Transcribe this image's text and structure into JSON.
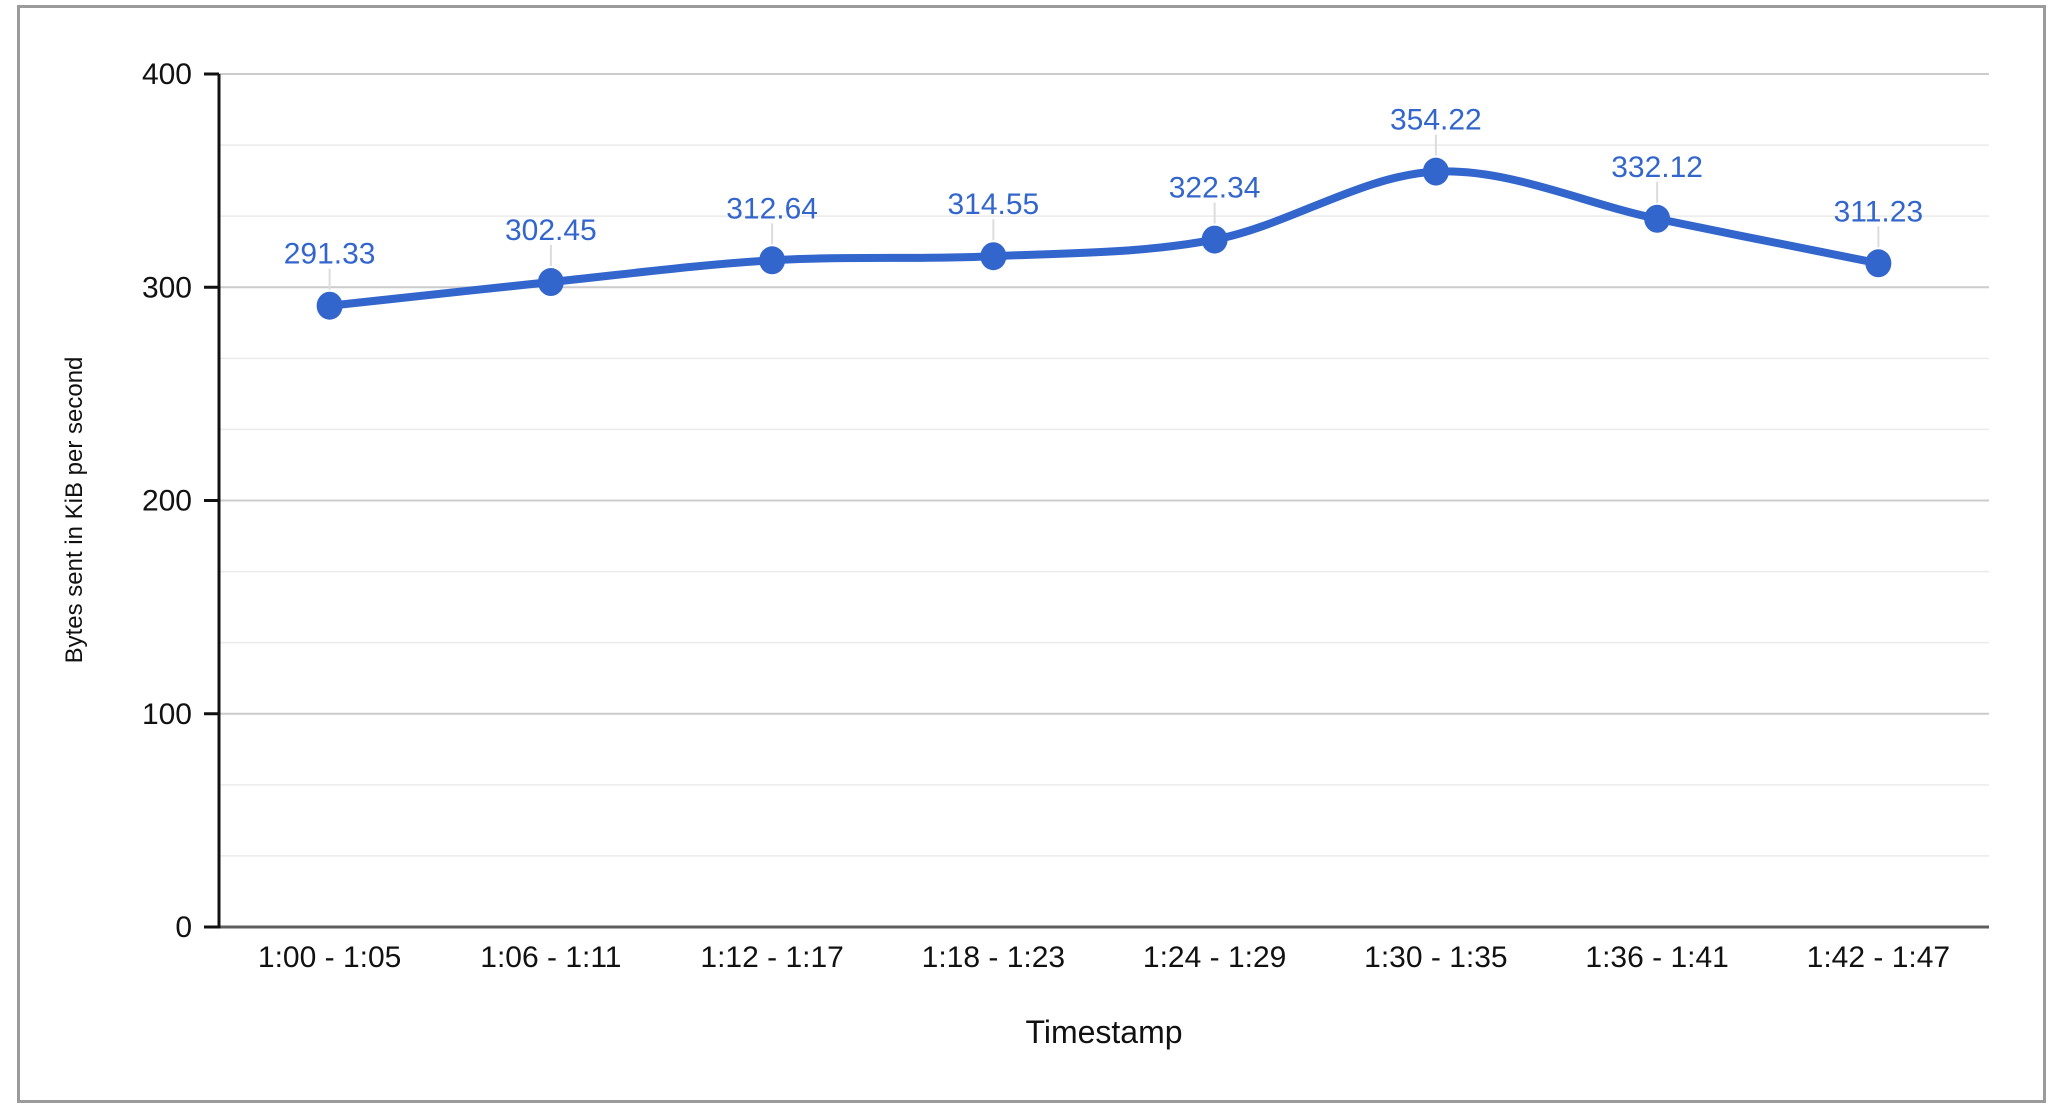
{
  "chart_data": {
    "type": "line",
    "title": "",
    "categories": [
      "1:00 - 1:05",
      "1:06 - 1:11",
      "1:12 - 1:17",
      "1:18 - 1:23",
      "1:24 - 1:29",
      "1:30 - 1:35",
      "1:36 - 1:41",
      "1:42 - 1:47"
    ],
    "values": [
      291.33,
      302.45,
      312.64,
      314.55,
      322.34,
      354.22,
      332.12,
      311.23
    ],
    "point_labels": [
      "291.33",
      "302.45",
      "312.64",
      "314.55",
      "322.34",
      "354.22",
      "332.12",
      "311.23"
    ],
    "xlabel": "Timestamp",
    "ylabel": "Bytes sent in KiB per second",
    "ylim": [
      0,
      400
    ],
    "yticks": [
      0,
      100,
      200,
      300,
      400
    ],
    "ytick_labels": [
      "0",
      "100",
      "200",
      "300",
      "400"
    ],
    "minor_grid_divisions": 3,
    "grid": true,
    "legend_position": "none",
    "smooth_curve": true,
    "colors": {
      "series": "#3366cc",
      "annotation_text": "#3366cc",
      "major_gridline": "#cccccc",
      "minor_gridline": "#ebebeb",
      "baseline": "#5f5f5f",
      "axis_line": "#111111",
      "tick_text": "#111111",
      "annotation_stem": "#dcdcdc",
      "frame_border": "#9b9b9b",
      "background": "#ffffff"
    }
  }
}
